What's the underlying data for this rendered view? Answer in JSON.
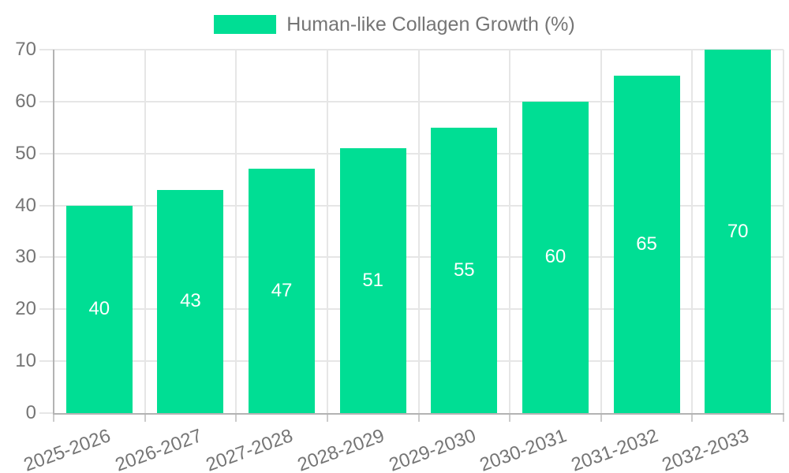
{
  "legend": {
    "label": "Human-like Collagen Growth (%)"
  },
  "colors": {
    "bar": "#00DE94",
    "bar_label": "#ffffff",
    "grid": "#e6e6e6",
    "axis": "#b3b3b3",
    "tick": "#cccccc",
    "text": "#757575",
    "background": "#ffffff"
  },
  "chart_data": {
    "type": "bar",
    "title": "Human-like Collagen Growth (%)",
    "categories": [
      "2025-2026",
      "2026-2027",
      "2027-2028",
      "2028-2029",
      "2029-2030",
      "2030-2031",
      "2031-2032",
      "2032-2033"
    ],
    "values": [
      40,
      43,
      47,
      51,
      55,
      60,
      65,
      70
    ],
    "series": [
      {
        "name": "Human-like Collagen Growth (%)",
        "values": [
          40,
          43,
          47,
          51,
          55,
          60,
          65,
          70
        ]
      }
    ],
    "xlabel": "",
    "ylabel": "",
    "ylim": [
      0,
      70
    ],
    "yticks": [
      0,
      10,
      20,
      30,
      40,
      50,
      60,
      70
    ],
    "grid": true,
    "legend_position": "top",
    "value_labels": "inside-middle",
    "x_label_rotation_deg": -20
  }
}
